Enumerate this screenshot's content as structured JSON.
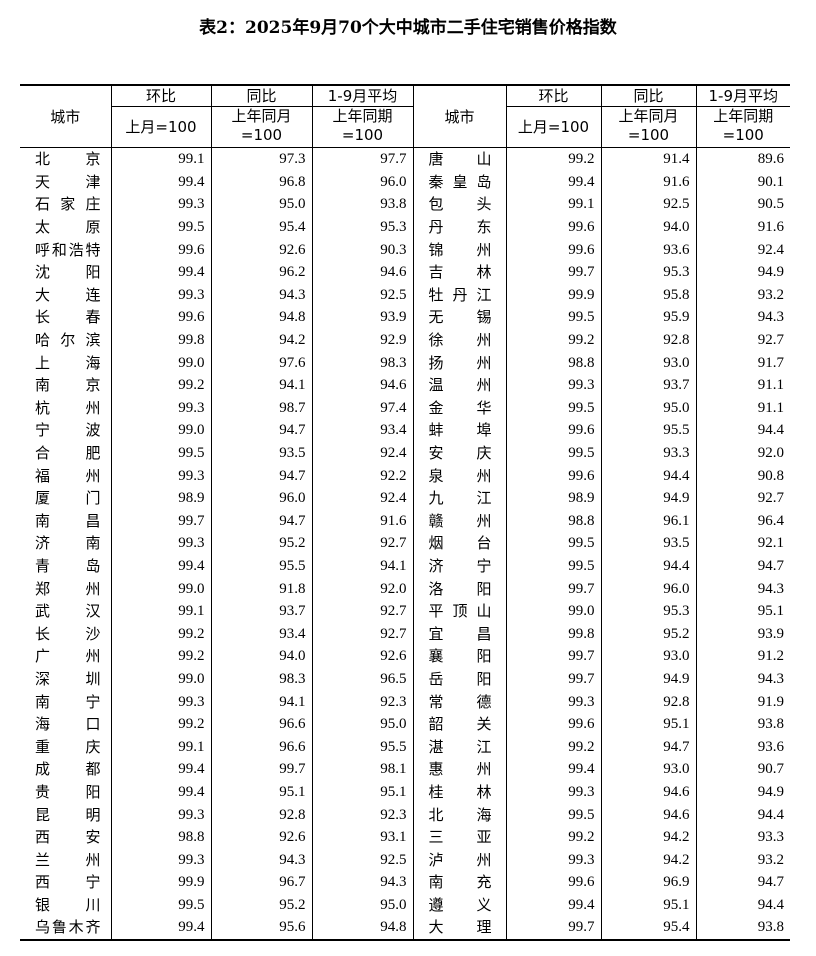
{
  "title": "表2：2025年9月70个大中城市二手住宅销售价格指数",
  "header": {
    "city": "城市",
    "mom": "环比",
    "yoy": "同比",
    "avg": "1-9月平均",
    "mom_base": "上月=100",
    "yoy_base_1": "上年同月",
    "yoy_base_2": "=100",
    "avg_base_1": "上年同期",
    "avg_base_2": "=100"
  },
  "left": [
    {
      "city": "北京",
      "mom": "99.1",
      "yoy": "97.3",
      "avg": "97.7"
    },
    {
      "city": "天津",
      "mom": "99.4",
      "yoy": "96.8",
      "avg": "96.0"
    },
    {
      "city": "石家庄",
      "mom": "99.3",
      "yoy": "95.0",
      "avg": "93.8"
    },
    {
      "city": "太原",
      "mom": "99.5",
      "yoy": "95.4",
      "avg": "95.3"
    },
    {
      "city": "呼和浩特",
      "mom": "99.6",
      "yoy": "92.6",
      "avg": "90.3"
    },
    {
      "city": "沈阳",
      "mom": "99.4",
      "yoy": "96.2",
      "avg": "94.6"
    },
    {
      "city": "大连",
      "mom": "99.3",
      "yoy": "94.3",
      "avg": "92.5"
    },
    {
      "city": "长春",
      "mom": "99.6",
      "yoy": "94.8",
      "avg": "93.9"
    },
    {
      "city": "哈尔滨",
      "mom": "99.8",
      "yoy": "94.2",
      "avg": "92.9"
    },
    {
      "city": "上海",
      "mom": "99.0",
      "yoy": "97.6",
      "avg": "98.3"
    },
    {
      "city": "南京",
      "mom": "99.2",
      "yoy": "94.1",
      "avg": "94.6"
    },
    {
      "city": "杭州",
      "mom": "99.3",
      "yoy": "98.7",
      "avg": "97.4"
    },
    {
      "city": "宁波",
      "mom": "99.0",
      "yoy": "94.7",
      "avg": "93.4"
    },
    {
      "city": "合肥",
      "mom": "99.5",
      "yoy": "93.5",
      "avg": "92.4"
    },
    {
      "city": "福州",
      "mom": "99.3",
      "yoy": "94.7",
      "avg": "92.2"
    },
    {
      "city": "厦门",
      "mom": "98.9",
      "yoy": "96.0",
      "avg": "92.4"
    },
    {
      "city": "南昌",
      "mom": "99.7",
      "yoy": "94.7",
      "avg": "91.6"
    },
    {
      "city": "济南",
      "mom": "99.3",
      "yoy": "95.2",
      "avg": "92.7"
    },
    {
      "city": "青岛",
      "mom": "99.4",
      "yoy": "95.5",
      "avg": "94.1"
    },
    {
      "city": "郑州",
      "mom": "99.0",
      "yoy": "91.8",
      "avg": "92.0"
    },
    {
      "city": "武汉",
      "mom": "99.1",
      "yoy": "93.7",
      "avg": "92.7"
    },
    {
      "city": "长沙",
      "mom": "99.2",
      "yoy": "93.4",
      "avg": "92.7"
    },
    {
      "city": "广州",
      "mom": "99.2",
      "yoy": "94.0",
      "avg": "92.6"
    },
    {
      "city": "深圳",
      "mom": "99.0",
      "yoy": "98.3",
      "avg": "96.5"
    },
    {
      "city": "南宁",
      "mom": "99.3",
      "yoy": "94.1",
      "avg": "92.3"
    },
    {
      "city": "海口",
      "mom": "99.2",
      "yoy": "96.6",
      "avg": "95.0"
    },
    {
      "city": "重庆",
      "mom": "99.1",
      "yoy": "96.6",
      "avg": "95.5"
    },
    {
      "city": "成都",
      "mom": "99.4",
      "yoy": "99.7",
      "avg": "98.1"
    },
    {
      "city": "贵阳",
      "mom": "99.4",
      "yoy": "95.1",
      "avg": "95.1"
    },
    {
      "city": "昆明",
      "mom": "99.3",
      "yoy": "92.8",
      "avg": "92.3"
    },
    {
      "city": "西安",
      "mom": "98.8",
      "yoy": "92.6",
      "avg": "93.1"
    },
    {
      "city": "兰州",
      "mom": "99.3",
      "yoy": "94.3",
      "avg": "92.5"
    },
    {
      "city": "西宁",
      "mom": "99.9",
      "yoy": "96.7",
      "avg": "94.3"
    },
    {
      "city": "银川",
      "mom": "99.5",
      "yoy": "95.2",
      "avg": "95.0"
    },
    {
      "city": "乌鲁木齐",
      "mom": "99.4",
      "yoy": "95.6",
      "avg": "94.8"
    }
  ],
  "right": [
    {
      "city": "唐山",
      "mom": "99.2",
      "yoy": "91.4",
      "avg": "89.6"
    },
    {
      "city": "秦皇岛",
      "mom": "99.4",
      "yoy": "91.6",
      "avg": "90.1"
    },
    {
      "city": "包头",
      "mom": "99.1",
      "yoy": "92.5",
      "avg": "90.5"
    },
    {
      "city": "丹东",
      "mom": "99.6",
      "yoy": "94.0",
      "avg": "91.6"
    },
    {
      "city": "锦州",
      "mom": "99.6",
      "yoy": "93.6",
      "avg": "92.4"
    },
    {
      "city": "吉林",
      "mom": "99.7",
      "yoy": "95.3",
      "avg": "94.9"
    },
    {
      "city": "牡丹江",
      "mom": "99.9",
      "yoy": "95.8",
      "avg": "93.2"
    },
    {
      "city": "无锡",
      "mom": "99.5",
      "yoy": "95.9",
      "avg": "94.3"
    },
    {
      "city": "徐州",
      "mom": "99.2",
      "yoy": "92.8",
      "avg": "92.7"
    },
    {
      "city": "扬州",
      "mom": "98.8",
      "yoy": "93.0",
      "avg": "91.7"
    },
    {
      "city": "温州",
      "mom": "99.3",
      "yoy": "93.7",
      "avg": "91.1"
    },
    {
      "city": "金华",
      "mom": "99.5",
      "yoy": "95.0",
      "avg": "91.1"
    },
    {
      "city": "蚌埠",
      "mom": "99.6",
      "yoy": "95.5",
      "avg": "94.4"
    },
    {
      "city": "安庆",
      "mom": "99.5",
      "yoy": "93.3",
      "avg": "92.0"
    },
    {
      "city": "泉州",
      "mom": "99.6",
      "yoy": "94.4",
      "avg": "90.8"
    },
    {
      "city": "九江",
      "mom": "98.9",
      "yoy": "94.9",
      "avg": "92.7"
    },
    {
      "city": "赣州",
      "mom": "98.8",
      "yoy": "96.1",
      "avg": "96.4"
    },
    {
      "city": "烟台",
      "mom": "99.5",
      "yoy": "93.5",
      "avg": "92.1"
    },
    {
      "city": "济宁",
      "mom": "99.5",
      "yoy": "94.4",
      "avg": "94.7"
    },
    {
      "city": "洛阳",
      "mom": "99.7",
      "yoy": "96.0",
      "avg": "94.3"
    },
    {
      "city": "平顶山",
      "mom": "99.0",
      "yoy": "95.3",
      "avg": "95.1"
    },
    {
      "city": "宜昌",
      "mom": "99.8",
      "yoy": "95.2",
      "avg": "93.9"
    },
    {
      "city": "襄阳",
      "mom": "99.7",
      "yoy": "93.0",
      "avg": "91.2"
    },
    {
      "city": "岳阳",
      "mom": "99.7",
      "yoy": "94.9",
      "avg": "94.3"
    },
    {
      "city": "常德",
      "mom": "99.3",
      "yoy": "92.8",
      "avg": "91.9"
    },
    {
      "city": "韶关",
      "mom": "99.6",
      "yoy": "95.1",
      "avg": "93.8"
    },
    {
      "city": "湛江",
      "mom": "99.2",
      "yoy": "94.7",
      "avg": "93.6"
    },
    {
      "city": "惠州",
      "mom": "99.4",
      "yoy": "93.0",
      "avg": "90.7"
    },
    {
      "city": "桂林",
      "mom": "99.3",
      "yoy": "94.6",
      "avg": "94.9"
    },
    {
      "city": "北海",
      "mom": "99.5",
      "yoy": "94.6",
      "avg": "94.4"
    },
    {
      "city": "三亚",
      "mom": "99.2",
      "yoy": "94.2",
      "avg": "93.3"
    },
    {
      "city": "泸州",
      "mom": "99.3",
      "yoy": "94.2",
      "avg": "93.2"
    },
    {
      "city": "南充",
      "mom": "99.6",
      "yoy": "96.9",
      "avg": "94.7"
    },
    {
      "city": "遵义",
      "mom": "99.4",
      "yoy": "95.1",
      "avg": "94.4"
    },
    {
      "city": "大理",
      "mom": "99.7",
      "yoy": "95.4",
      "avg": "93.8"
    }
  ]
}
